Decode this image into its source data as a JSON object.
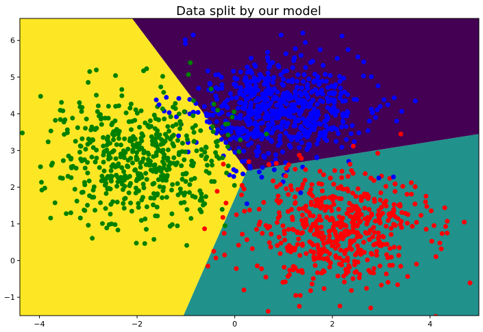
{
  "chart_data": {
    "type": "scatter",
    "title": "Data split by our model",
    "xlabel": "",
    "ylabel": "",
    "xlim": [
      -4.4,
      5.0
    ],
    "ylim": [
      -1.5,
      6.6
    ],
    "x_ticks": [
      -4,
      -2,
      0,
      2,
      4
    ],
    "y_ticks": [
      -1,
      0,
      1,
      2,
      3,
      4,
      5,
      6
    ],
    "x_tick_labels": [
      "−4",
      "−2",
      "0",
      "2",
      "4"
    ],
    "y_tick_labels": [
      "−1",
      "0",
      "1",
      "2",
      "3",
      "4",
      "5",
      "6"
    ],
    "grid": false,
    "legend": "none",
    "decision_regions": [
      {
        "color": "#fde725",
        "polygon": [
          [
            -4.4,
            6.6
          ],
          [
            -2.1,
            6.6
          ],
          [
            0.25,
            2.45
          ],
          [
            -1.05,
            -1.5
          ],
          [
            -4.4,
            -1.5
          ]
        ]
      },
      {
        "color": "#440154",
        "polygon": [
          [
            -2.1,
            6.6
          ],
          [
            5.0,
            6.6
          ],
          [
            5.0,
            3.45
          ],
          [
            0.25,
            2.45
          ]
        ]
      },
      {
        "color": "#21918c",
        "polygon": [
          [
            0.25,
            2.45
          ],
          [
            5.0,
            3.45
          ],
          [
            5.0,
            -1.5
          ],
          [
            -1.05,
            -1.5
          ]
        ]
      }
    ],
    "clusters": [
      {
        "color": "#0000ff",
        "center": [
          0.95,
          4.1
        ],
        "spread": [
          0.85,
          0.72
        ],
        "count": 650,
        "seed": 11
      },
      {
        "color": "#ff0000",
        "center": [
          2.05,
          0.95
        ],
        "spread": [
          0.9,
          0.8
        ],
        "count": 520,
        "seed": 23
      },
      {
        "color": "#008000",
        "center": [
          -1.95,
          2.85
        ],
        "spread": [
          0.85,
          0.9
        ],
        "count": 520,
        "seed": 37
      }
    ],
    "points": [
      {
        "x": -4.35,
        "y": 3.48,
        "color": "#008000"
      },
      {
        "x": -3.45,
        "y": 1.28,
        "color": "#008000"
      },
      {
        "x": -3.95,
        "y": 1.92,
        "color": "#008000"
      },
      {
        "x": -2.45,
        "y": 0.98,
        "color": "#008000"
      },
      {
        "x": -0.2,
        "y": 0.95,
        "color": "#008000"
      },
      {
        "x": 4.7,
        "y": 1.05,
        "color": "#ff0000"
      },
      {
        "x": 4.2,
        "y": 0.48,
        "color": "#ff0000"
      },
      {
        "x": 4.35,
        "y": 0.75,
        "color": "#ff0000"
      },
      {
        "x": 2.35,
        "y": -0.18,
        "color": "#ff0000"
      },
      {
        "x": -0.55,
        "y": -0.15,
        "color": "#ff0000"
      },
      {
        "x": 1.25,
        "y": -0.95,
        "color": "#ff0000"
      },
      {
        "x": 1.45,
        "y": 2.48,
        "color": "#ff0000"
      },
      {
        "x": 3.4,
        "y": 3.45,
        "color": "#ff0000"
      },
      {
        "x": 0.7,
        "y": 2.62,
        "color": "#ff0000"
      },
      {
        "x": 0.85,
        "y": 2.65,
        "color": "#ff0000"
      },
      {
        "x": 2.95,
        "y": 2.25,
        "color": "#0000ff"
      },
      {
        "x": 3.25,
        "y": 2.28,
        "color": "#0000ff"
      },
      {
        "x": 1.35,
        "y": 1.85,
        "color": "#0000ff"
      },
      {
        "x": 0.25,
        "y": 1.55,
        "color": "#0000ff"
      },
      {
        "x": -0.85,
        "y": 6.15,
        "color": "#0000ff"
      },
      {
        "x": 0.95,
        "y": 6.15,
        "color": "#0000ff"
      },
      {
        "x": 1.75,
        "y": 5.75,
        "color": "#0000ff"
      },
      {
        "x": 3.7,
        "y": 4.35,
        "color": "#0000ff"
      },
      {
        "x": -1.4,
        "y": 4.45,
        "color": "#0000ff"
      },
      {
        "x": -1.55,
        "y": 4.25,
        "color": "#0000ff"
      },
      {
        "x": 0.65,
        "y": 3.45,
        "color": "#008000"
      },
      {
        "x": -0.35,
        "y": 4.1,
        "color": "#008000"
      },
      {
        "x": 0.15,
        "y": 2.05,
        "color": "#ff0000"
      }
    ]
  }
}
